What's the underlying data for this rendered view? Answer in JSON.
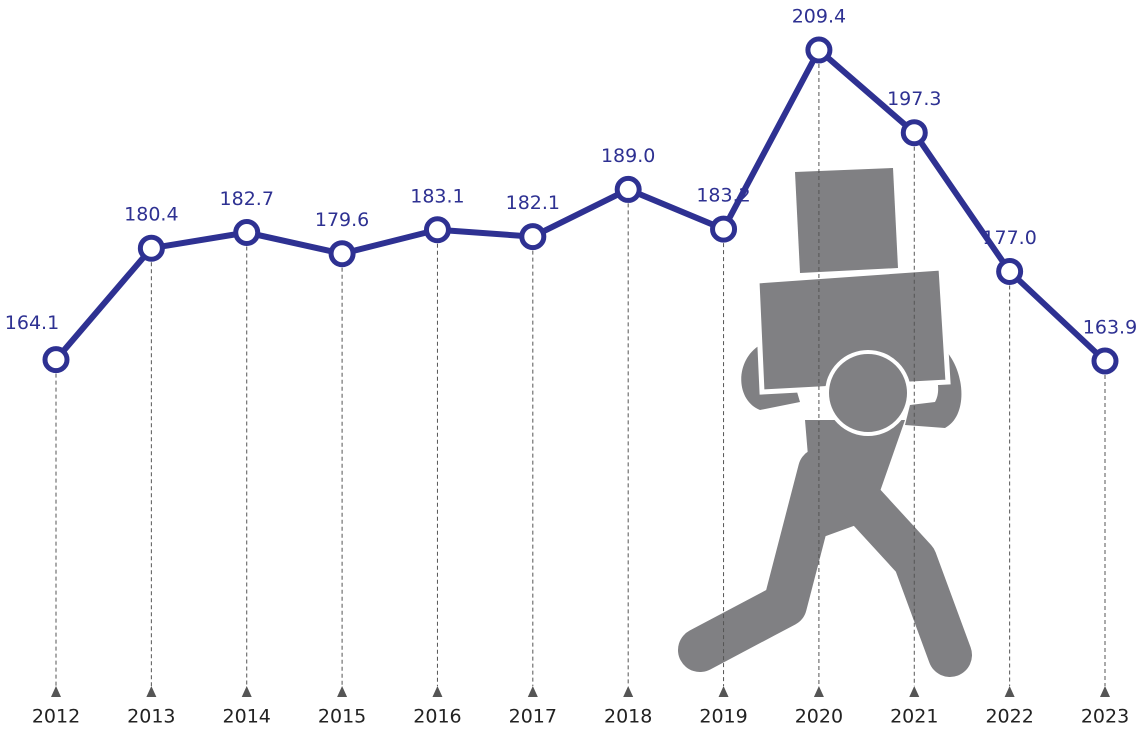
{
  "chart_data": {
    "type": "line",
    "categories": [
      "2012",
      "2013",
      "2014",
      "2015",
      "2016",
      "2017",
      "2018",
      "2019",
      "2020",
      "2021",
      "2022",
      "2023"
    ],
    "values": [
      164.1,
      180.4,
      182.7,
      179.6,
      183.1,
      182.1,
      189.0,
      183.2,
      209.4,
      197.3,
      177.0,
      163.9
    ],
    "value_labels": [
      "164.1",
      "180.4",
      "182.7",
      "179.6",
      "183.1",
      "182.1",
      "189.0",
      "183.2",
      "209.4",
      "197.3",
      "177.0",
      "163.9"
    ],
    "color": "#2e3192"
  }
}
